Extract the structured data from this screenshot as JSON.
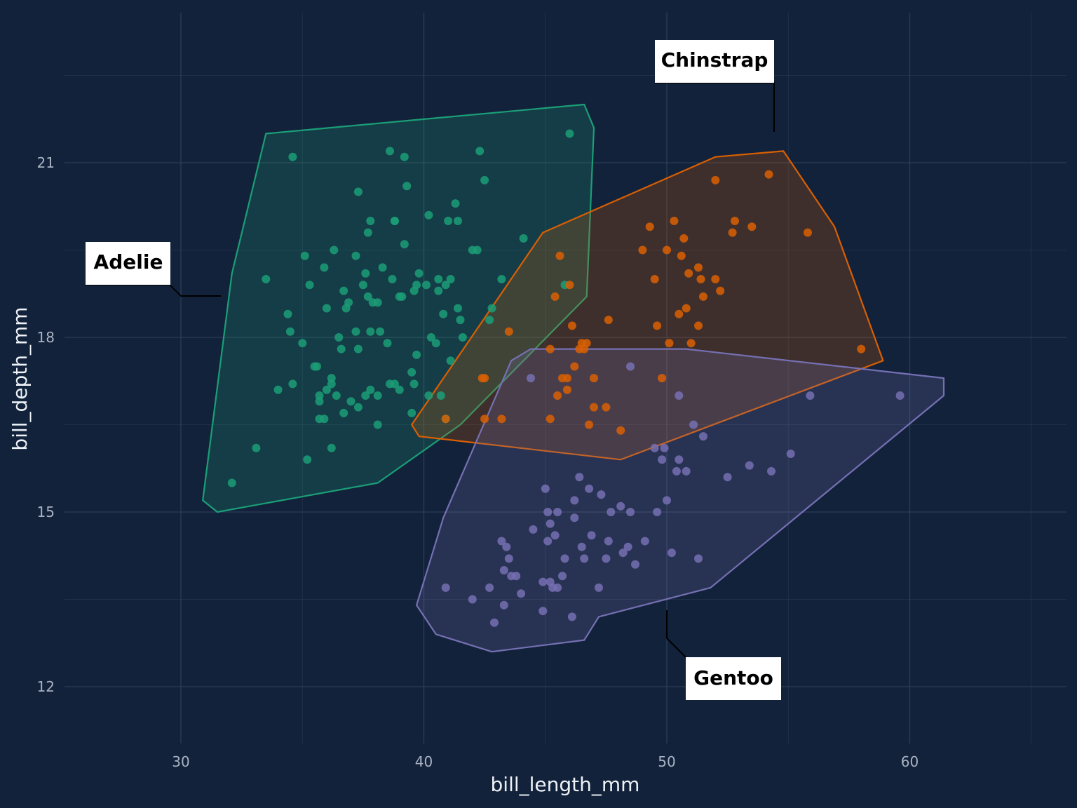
{
  "chart_data": {
    "type": "scatter",
    "title": "",
    "xlabel": "bill_length_mm",
    "ylabel": "bill_depth_mm",
    "xlim": [
      25.5,
      66.6
    ],
    "ylim": [
      11.0,
      22.6
    ],
    "x_ticks": [
      30,
      40,
      50,
      60
    ],
    "y_ticks": [
      12,
      15,
      18,
      21
    ],
    "grid": true,
    "legend": "none",
    "colors": {
      "background": "#12223a",
      "grid": "#2c3d57",
      "tick_text": "#a9b3c3",
      "title_text": "#eef2f7"
    },
    "series": [
      {
        "name": "Adelie",
        "color": "#1b9e77",
        "hull": [
          [
            33.5,
            21.5
          ],
          [
            46.6,
            22.0
          ],
          [
            47.0,
            21.6
          ],
          [
            46.7,
            18.7
          ],
          [
            41.5,
            16.5
          ],
          [
            38.1,
            15.5
          ],
          [
            31.5,
            15.0
          ],
          [
            30.9,
            15.2
          ],
          [
            32.1,
            19.1
          ]
        ],
        "points": [
          [
            32.1,
            15.5
          ],
          [
            33.1,
            16.1
          ],
          [
            33.5,
            19.0
          ],
          [
            34.0,
            17.1
          ],
          [
            34.4,
            18.4
          ],
          [
            34.5,
            18.1
          ],
          [
            34.6,
            17.2
          ],
          [
            34.6,
            21.1
          ],
          [
            35.0,
            17.9
          ],
          [
            35.1,
            19.4
          ],
          [
            35.2,
            15.9
          ],
          [
            35.3,
            18.9
          ],
          [
            35.5,
            17.5
          ],
          [
            35.6,
            17.5
          ],
          [
            35.7,
            16.9
          ],
          [
            35.7,
            16.6
          ],
          [
            35.7,
            17.0
          ],
          [
            35.9,
            16.6
          ],
          [
            35.9,
            19.2
          ],
          [
            36.0,
            17.1
          ],
          [
            36.0,
            18.5
          ],
          [
            36.2,
            16.1
          ],
          [
            36.2,
            17.2
          ],
          [
            36.2,
            17.3
          ],
          [
            36.3,
            19.5
          ],
          [
            36.4,
            17.0
          ],
          [
            36.5,
            18.0
          ],
          [
            36.6,
            17.8
          ],
          [
            36.7,
            16.7
          ],
          [
            36.7,
            18.8
          ],
          [
            36.8,
            18.5
          ],
          [
            36.9,
            18.6
          ],
          [
            37.0,
            16.9
          ],
          [
            37.2,
            18.1
          ],
          [
            37.2,
            19.4
          ],
          [
            37.3,
            16.8
          ],
          [
            37.3,
            17.8
          ],
          [
            37.3,
            20.5
          ],
          [
            37.5,
            18.9
          ],
          [
            37.6,
            17.0
          ],
          [
            37.6,
            19.1
          ],
          [
            37.7,
            18.7
          ],
          [
            37.8,
            17.1
          ],
          [
            37.8,
            18.1
          ],
          [
            37.8,
            20.0
          ],
          [
            37.9,
            18.6
          ],
          [
            38.1,
            17.0
          ],
          [
            38.1,
            18.6
          ],
          [
            38.1,
            16.5
          ],
          [
            38.2,
            18.1
          ],
          [
            38.3,
            19.2
          ],
          [
            38.5,
            17.9
          ],
          [
            38.6,
            17.2
          ],
          [
            38.6,
            21.2
          ],
          [
            38.7,
            19.0
          ],
          [
            38.8,
            17.2
          ],
          [
            38.8,
            20.0
          ],
          [
            39.0,
            17.1
          ],
          [
            39.0,
            18.7
          ],
          [
            39.1,
            18.7
          ],
          [
            39.2,
            19.6
          ],
          [
            39.2,
            21.1
          ],
          [
            39.5,
            16.7
          ],
          [
            39.5,
            17.4
          ],
          [
            39.6,
            17.2
          ],
          [
            39.6,
            18.8
          ],
          [
            39.7,
            17.7
          ],
          [
            39.8,
            19.1
          ],
          [
            40.1,
            18.9
          ],
          [
            40.2,
            17.0
          ],
          [
            40.3,
            18.0
          ],
          [
            40.5,
            17.9
          ],
          [
            40.6,
            18.8
          ],
          [
            40.6,
            19.0
          ],
          [
            40.7,
            17.0
          ],
          [
            40.8,
            18.4
          ],
          [
            40.9,
            16.6
          ],
          [
            40.9,
            18.9
          ],
          [
            41.1,
            17.6
          ],
          [
            41.1,
            19.0
          ],
          [
            41.3,
            20.3
          ],
          [
            41.4,
            18.5
          ],
          [
            41.5,
            18.3
          ],
          [
            41.6,
            18.0
          ],
          [
            42.0,
            19.5
          ],
          [
            42.2,
            19.5
          ],
          [
            42.3,
            21.2
          ],
          [
            42.5,
            20.7
          ],
          [
            42.7,
            18.3
          ],
          [
            42.8,
            18.5
          ],
          [
            43.2,
            19.0
          ],
          [
            44.1,
            19.7
          ],
          [
            45.8,
            18.9
          ],
          [
            46.0,
            21.5
          ],
          [
            37.7,
            19.8
          ],
          [
            38.8,
            20.0
          ],
          [
            39.7,
            18.9
          ],
          [
            39.3,
            20.6
          ],
          [
            40.2,
            20.1
          ],
          [
            41.4,
            20.0
          ],
          [
            41.0,
            20.0
          ]
        ]
      },
      {
        "name": "Chinstrap",
        "color": "#d95f02",
        "hull": [
          [
            39.5,
            16.5
          ],
          [
            44.9,
            19.8
          ],
          [
            52.0,
            21.1
          ],
          [
            54.8,
            21.2
          ],
          [
            56.9,
            19.9
          ],
          [
            58.9,
            17.6
          ],
          [
            48.1,
            15.9
          ],
          [
            39.8,
            16.3
          ]
        ],
        "points": [
          [
            40.9,
            16.6
          ],
          [
            42.4,
            17.3
          ],
          [
            42.5,
            17.3
          ],
          [
            42.5,
            16.6
          ],
          [
            43.2,
            16.6
          ],
          [
            43.5,
            18.1
          ],
          [
            45.2,
            17.8
          ],
          [
            45.2,
            16.6
          ],
          [
            45.4,
            18.7
          ],
          [
            45.5,
            17.0
          ],
          [
            45.6,
            19.4
          ],
          [
            45.7,
            17.3
          ],
          [
            45.9,
            17.1
          ],
          [
            46.0,
            18.9
          ],
          [
            46.1,
            18.2
          ],
          [
            46.2,
            17.5
          ],
          [
            46.4,
            17.8
          ],
          [
            46.5,
            17.9
          ],
          [
            46.6,
            17.8
          ],
          [
            46.7,
            17.9
          ],
          [
            46.8,
            16.5
          ],
          [
            47.0,
            17.3
          ],
          [
            47.5,
            16.8
          ],
          [
            47.6,
            18.3
          ],
          [
            48.1,
            16.4
          ],
          [
            49.0,
            19.5
          ],
          [
            49.3,
            19.9
          ],
          [
            49.5,
            19.0
          ],
          [
            49.6,
            18.2
          ],
          [
            50.0,
            19.5
          ],
          [
            50.3,
            20.0
          ],
          [
            50.5,
            18.4
          ],
          [
            50.6,
            19.4
          ],
          [
            50.7,
            19.7
          ],
          [
            50.8,
            18.5
          ],
          [
            50.9,
            19.1
          ],
          [
            51.3,
            19.2
          ],
          [
            51.3,
            18.2
          ],
          [
            51.4,
            19.0
          ],
          [
            51.5,
            18.7
          ],
          [
            52.0,
            19.0
          ],
          [
            52.0,
            20.7
          ],
          [
            52.2,
            18.8
          ],
          [
            52.7,
            19.8
          ],
          [
            52.8,
            20.0
          ],
          [
            53.5,
            19.9
          ],
          [
            54.2,
            20.8
          ],
          [
            55.8,
            19.8
          ],
          [
            58.0,
            17.8
          ],
          [
            49.8,
            17.3
          ],
          [
            50.1,
            17.9
          ],
          [
            51.0,
            17.9
          ],
          [
            45.9,
            17.3
          ],
          [
            47.0,
            16.8
          ]
        ]
      },
      {
        "name": "Gentoo",
        "color": "#7570b3",
        "hull": [
          [
            44.4,
            17.8
          ],
          [
            50.8,
            17.8
          ],
          [
            61.4,
            17.3
          ],
          [
            61.4,
            17.0
          ],
          [
            51.8,
            13.7
          ],
          [
            47.2,
            13.2
          ],
          [
            46.6,
            12.8
          ],
          [
            42.8,
            12.6
          ],
          [
            40.5,
            12.9
          ],
          [
            39.7,
            13.4
          ],
          [
            40.8,
            14.9
          ],
          [
            43.6,
            17.6
          ]
        ],
        "points": [
          [
            40.9,
            13.7
          ],
          [
            42.0,
            13.5
          ],
          [
            42.7,
            13.7
          ],
          [
            42.9,
            13.1
          ],
          [
            43.2,
            14.5
          ],
          [
            43.3,
            13.4
          ],
          [
            43.3,
            14.0
          ],
          [
            43.4,
            14.4
          ],
          [
            43.5,
            14.2
          ],
          [
            43.6,
            13.9
          ],
          [
            43.8,
            13.9
          ],
          [
            44.0,
            13.6
          ],
          [
            44.4,
            17.3
          ],
          [
            44.5,
            14.7
          ],
          [
            44.9,
            13.8
          ],
          [
            44.9,
            13.3
          ],
          [
            45.0,
            15.4
          ],
          [
            45.1,
            14.5
          ],
          [
            45.2,
            14.8
          ],
          [
            45.2,
            13.8
          ],
          [
            45.3,
            13.7
          ],
          [
            45.4,
            14.6
          ],
          [
            45.5,
            13.7
          ],
          [
            45.5,
            15.0
          ],
          [
            45.7,
            13.9
          ],
          [
            45.8,
            14.2
          ],
          [
            46.1,
            13.2
          ],
          [
            46.2,
            14.9
          ],
          [
            46.4,
            15.6
          ],
          [
            46.5,
            14.4
          ],
          [
            46.6,
            14.2
          ],
          [
            46.8,
            15.4
          ],
          [
            46.9,
            14.6
          ],
          [
            47.2,
            13.7
          ],
          [
            47.5,
            14.2
          ],
          [
            47.6,
            14.5
          ],
          [
            47.7,
            15.0
          ],
          [
            48.1,
            15.1
          ],
          [
            48.2,
            14.3
          ],
          [
            48.4,
            14.4
          ],
          [
            48.5,
            15.0
          ],
          [
            48.7,
            14.1
          ],
          [
            49.1,
            14.5
          ],
          [
            49.5,
            16.1
          ],
          [
            49.6,
            15.0
          ],
          [
            49.8,
            15.9
          ],
          [
            49.9,
            16.1
          ],
          [
            50.0,
            15.2
          ],
          [
            50.2,
            14.3
          ],
          [
            50.4,
            15.7
          ],
          [
            50.5,
            15.9
          ],
          [
            50.8,
            15.7
          ],
          [
            51.1,
            16.5
          ],
          [
            51.3,
            14.2
          ],
          [
            51.5,
            16.3
          ],
          [
            52.5,
            15.6
          ],
          [
            53.4,
            15.8
          ],
          [
            54.3,
            15.7
          ],
          [
            55.1,
            16.0
          ],
          [
            55.9,
            17.0
          ],
          [
            59.6,
            17.0
          ],
          [
            46.2,
            15.2
          ],
          [
            45.1,
            15.0
          ],
          [
            47.3,
            15.3
          ],
          [
            48.5,
            17.5
          ],
          [
            50.5,
            17.0
          ]
        ]
      }
    ],
    "annotations": [
      {
        "label": "Adelie"
      },
      {
        "label": "Chinstrap"
      },
      {
        "label": "Gentoo"
      }
    ]
  }
}
